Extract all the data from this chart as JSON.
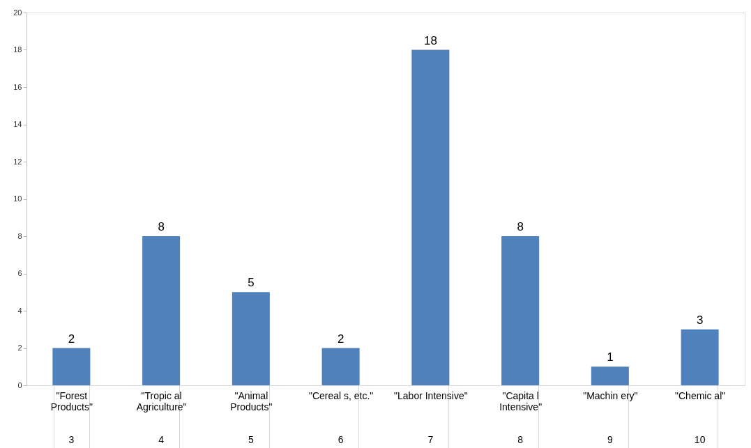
{
  "chart_data": {
    "type": "bar",
    "categories": [
      "\"Forest\nProducts\"",
      "\"Tropic al\nAgriculture\"",
      "\"Animal\nProducts\"",
      "\"Cereal s, etc.\"",
      "\"Labor Intensive\"",
      "\"Capita l\nIntensive\"",
      "\"Machin ery\"",
      "\"Chemic al\""
    ],
    "values": [
      2,
      8,
      5,
      2,
      18,
      8,
      1,
      3
    ],
    "color": "#4f81bd",
    "ylim": [
      0,
      20
    ],
    "yticks": [
      0,
      2,
      4,
      6,
      8,
      10,
      12,
      14,
      16,
      18,
      20
    ],
    "grid": false,
    "data_labels": true,
    "annotations": [
      "3",
      "4",
      "5",
      "6",
      "7",
      "8",
      "9",
      "10"
    ]
  }
}
